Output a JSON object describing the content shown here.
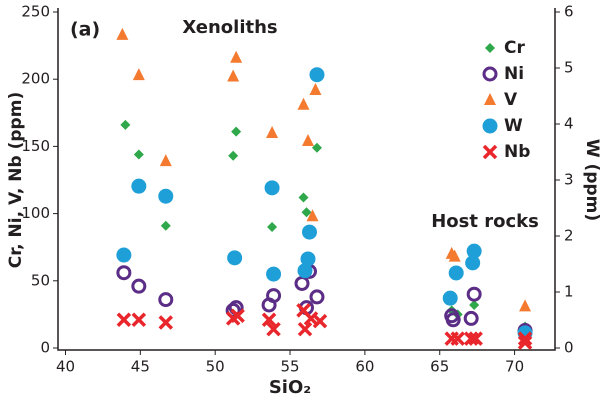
{
  "chart_data": {
    "type": "scatter",
    "panel_label": "(a)",
    "annotations": [
      "Xenoliths",
      "Host rocks"
    ],
    "x_label": "SiO₂",
    "y_label": "Cr, Ni, V, Nb (ppm)",
    "y2_label": "W (ppm)",
    "xlim": [
      39.5,
      72.7
    ],
    "xticks": [
      40,
      45,
      50,
      55,
      60,
      65,
      70
    ],
    "ylim": [
      0,
      250
    ],
    "yticks": [
      0,
      50,
      100,
      150,
      200,
      250
    ],
    "y2lim": [
      0,
      6
    ],
    "y2ticks": [
      0,
      1,
      2,
      3,
      4,
      5,
      6
    ],
    "legend": "top-right",
    "series": [
      {
        "name": "Cr",
        "color": "#2ea84a",
        "marker": "diamond",
        "x": [
          44.0,
          44.9,
          46.7,
          51.2,
          51.4,
          53.8,
          55.9,
          56.1,
          56.3,
          56.8,
          65.8,
          66.2,
          67.3,
          70.7
        ],
        "values": [
          166,
          144,
          91,
          143,
          161,
          90,
          112,
          101,
          85,
          149,
          28,
          25,
          32,
          16
        ]
      },
      {
        "name": "Ni",
        "color": "#5b2d86",
        "marker": "circle-open",
        "x": [
          43.9,
          44.9,
          46.7,
          51.2,
          51.4,
          53.6,
          53.9,
          55.8,
          56.1,
          56.3,
          56.8,
          65.8,
          65.9,
          67.1,
          67.3,
          70.7
        ],
        "values": [
          56,
          46,
          36,
          28,
          30,
          32,
          39,
          48,
          30,
          57,
          38,
          24,
          21,
          22,
          40,
          13
        ]
      },
      {
        "name": "V",
        "color": "#f47a30",
        "marker": "triangle",
        "x": [
          43.8,
          44.9,
          46.7,
          51.2,
          51.4,
          53.8,
          55.9,
          56.2,
          56.7,
          56.5,
          65.8,
          66.0,
          67.2,
          67.3,
          70.7
        ],
        "values": [
          233,
          203,
          139,
          202,
          216,
          160,
          181,
          154,
          192,
          98,
          70,
          68,
          66,
          68,
          31
        ]
      },
      {
        "name": "W",
        "color": "#1e9fd8",
        "marker": "circle",
        "axis": "y2",
        "x": [
          43.9,
          44.9,
          46.7,
          51.3,
          53.8,
          53.9,
          56.0,
          56.2,
          56.3,
          56.8,
          65.7,
          66.1,
          67.3,
          67.2,
          70.7
        ],
        "values": [
          1.66,
          2.89,
          2.71,
          1.61,
          2.86,
          1.32,
          1.38,
          1.59,
          2.07,
          4.88,
          0.89,
          1.34,
          1.73,
          1.52,
          0.27
        ]
      },
      {
        "name": "Nb",
        "color": "#e8262b",
        "marker": "x",
        "x": [
          43.9,
          44.9,
          46.7,
          51.2,
          51.5,
          53.6,
          53.9,
          55.9,
          56.0,
          56.4,
          57.0,
          65.8,
          66.2,
          67.1,
          67.4,
          70.7,
          70.7
        ],
        "values": [
          21,
          21,
          19,
          22,
          24,
          21,
          14,
          28,
          14,
          22,
          20,
          7,
          7,
          7,
          7,
          7,
          4
        ]
      }
    ]
  }
}
